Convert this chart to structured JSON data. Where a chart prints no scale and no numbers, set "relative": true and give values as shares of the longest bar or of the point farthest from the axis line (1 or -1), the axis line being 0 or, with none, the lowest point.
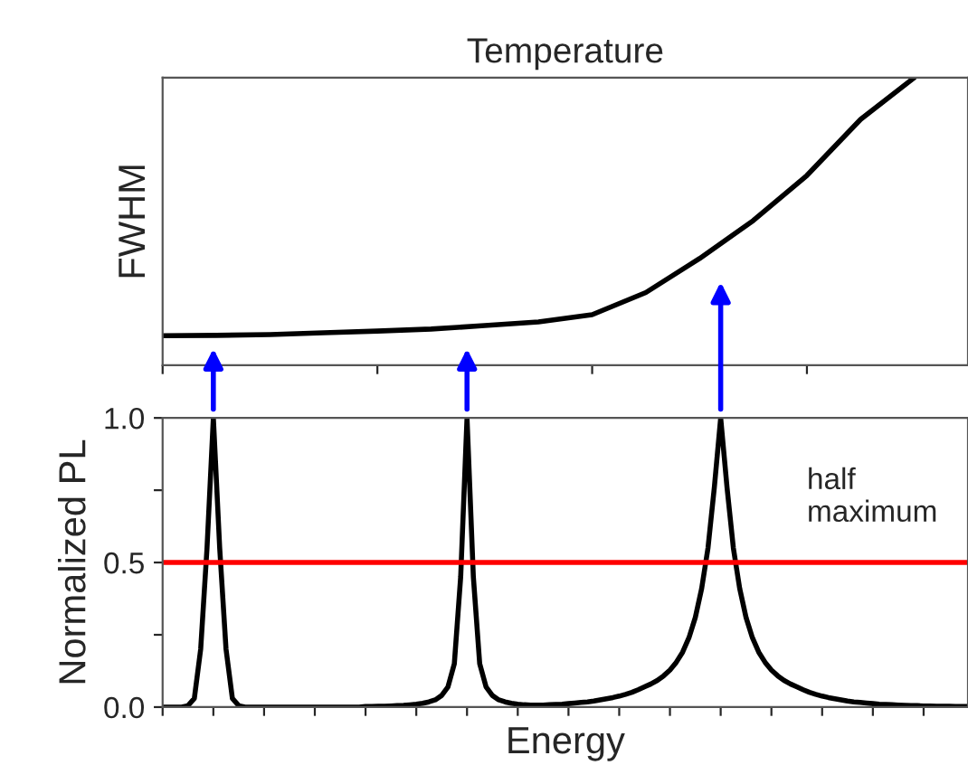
{
  "chart_data": [
    {
      "type": "line",
      "title": "Temperature",
      "ylabel": "FWHM",
      "relative": true,
      "tick_labels": false,
      "categories": [
        null,
        null,
        null,
        null,
        null,
        null,
        null,
        null,
        null,
        null,
        null,
        null,
        null,
        null,
        null,
        null
      ],
      "series": [
        {
          "color": "#000000",
          "values": [
            0.103,
            0.104,
            0.107,
            0.113,
            0.119,
            0.126,
            0.138,
            0.151,
            0.176,
            0.253,
            0.371,
            0.503,
            0.66,
            0.855,
            1.0,
            null
          ]
        }
      ]
    },
    {
      "type": "line",
      "xlabel": "Energy",
      "ylabel": "Normalized PL",
      "tick_labels": "y",
      "categories": [
        null,
        null,
        null,
        null,
        null,
        null,
        null,
        null,
        null,
        null,
        null,
        null,
        null,
        null,
        null,
        null,
        null,
        null,
        null,
        null,
        null,
        null,
        null,
        null,
        null,
        null,
        null,
        null,
        null,
        null,
        null,
        null,
        null,
        null,
        null,
        null,
        null,
        null,
        null,
        null,
        null,
        null,
        null,
        null,
        null,
        null,
        null,
        null,
        null,
        null,
        null,
        null,
        null,
        null,
        null,
        null,
        null,
        null,
        null,
        null,
        null,
        null,
        null,
        null,
        null,
        null,
        null,
        null,
        null,
        null,
        null,
        null,
        null,
        null,
        null,
        null,
        null,
        null,
        null,
        null,
        null,
        null,
        null,
        null,
        null,
        null,
        null,
        null,
        null,
        null,
        null,
        null,
        null,
        null,
        null,
        null,
        null,
        null,
        null,
        null,
        null,
        null,
        null,
        null,
        null,
        null,
        null,
        null,
        null,
        null,
        null,
        null,
        null,
        null,
        null,
        null,
        null,
        null,
        null,
        null,
        null,
        null,
        null,
        null,
        null,
        null,
        null,
        null
      ],
      "ylim": [
        0,
        1.0
      ],
      "yticks": [
        {
          "value": 0,
          "label": "0.0"
        },
        {
          "value": 0.25,
          "label": null
        },
        {
          "value": 0.5,
          "label": "0.5"
        },
        {
          "value": 0.75,
          "label": null
        },
        {
          "value": 1.0,
          "label": "1.0"
        }
      ],
      "ref_lines": [
        {
          "axis": "y",
          "value": 0.5,
          "label": "half maximum",
          "color": "#ff0000"
        }
      ],
      "series": [
        {
          "color": "#000000",
          "values": [
            0,
            0,
            0,
            0,
            0.005,
            0.03,
            0.2,
            0.55,
            1.0,
            0.55,
            0.2,
            0.03,
            0.005,
            0,
            0,
            0,
            0,
            0,
            0,
            0,
            0,
            0,
            0,
            0,
            0,
            0,
            0,
            0,
            0,
            0,
            0,
            0,
            0.002,
            0.002,
            0.003,
            0.003,
            0.004,
            0.005,
            0.006,
            0.008,
            0.01,
            0.013,
            0.018,
            0.025,
            0.04,
            0.07,
            0.15,
            0.45,
            1.0,
            0.45,
            0.15,
            0.07,
            0.04,
            0.025,
            0.018,
            0.013,
            0.01,
            0.008,
            0.007,
            0.007,
            0.007,
            0.008,
            0.009,
            0.01,
            0.012,
            0.014,
            0.016,
            0.018,
            0.021,
            0.025,
            0.029,
            0.033,
            0.038,
            0.044,
            0.051,
            0.06,
            0.07,
            0.08,
            0.092,
            0.108,
            0.128,
            0.155,
            0.19,
            0.24,
            0.31,
            0.41,
            0.55,
            0.76,
            1.0,
            0.76,
            0.55,
            0.41,
            0.31,
            0.24,
            0.19,
            0.155,
            0.128,
            0.108,
            0.092,
            0.08,
            0.07,
            0.06,
            0.051,
            0.044,
            0.038,
            0.033,
            0.029,
            0.025,
            0.021,
            0.018,
            0.016,
            0.014,
            0.012,
            0.01,
            0.009,
            0.008,
            0.007,
            0.006,
            0.005,
            0.005,
            0.004,
            0.004,
            0.003,
            0.003,
            0.003,
            0.002,
            0.002,
            0.002
          ]
        }
      ]
    }
  ]
}
